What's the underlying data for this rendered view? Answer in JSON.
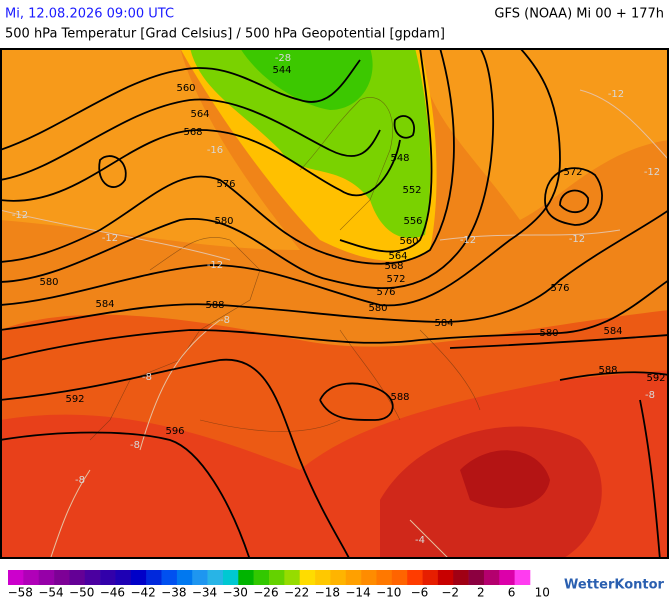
{
  "header": {
    "datetime": "Mi, 12.08.2026 09:00 UTC",
    "model": "GFS (NOAA) Mi 00 + 177h",
    "title": "500 hPa Temperatur [Grad Celsius] / 500 hPa Geopotential [gpdam]"
  },
  "map": {
    "contour_labels": [
      544,
      560,
      564,
      568,
      548,
      552,
      556,
      560,
      564,
      568,
      572,
      576,
      580,
      576,
      580,
      584,
      576,
      572,
      580,
      584,
      588,
      580,
      584,
      588,
      592,
      588,
      592,
      596
    ],
    "isotherm_labels": [
      -28,
      -16,
      -12,
      -12,
      -12,
      -12,
      -12,
      -12,
      -12,
      -8,
      -8,
      -8,
      -8,
      -8,
      -4
    ]
  },
  "legend": {
    "colors": [
      "#cc00cc",
      "#b000b8",
      "#9600a8",
      "#7d0096",
      "#640096",
      "#4b00a0",
      "#3200aa",
      "#1e00b4",
      "#0000c8",
      "#0028dc",
      "#0050f0",
      "#0078f0",
      "#1e96f0",
      "#28b4e6",
      "#00c8d2",
      "#00b400",
      "#32c800",
      "#64d200",
      "#96dc00",
      "#ffdc00",
      "#ffc800",
      "#ffb400",
      "#ffa000",
      "#ff8c00",
      "#ff7800",
      "#ff6400",
      "#ff3c00",
      "#e61e00",
      "#c80000",
      "#a00014",
      "#8c0040",
      "#b4006e",
      "#dc00aa",
      "#ff3cf0"
    ],
    "labels": [
      "−58",
      "−54",
      "−50",
      "−46",
      "−42",
      "−38",
      "−34",
      "−30",
      "−26",
      "−22",
      "−18",
      "−14",
      "−10",
      "−6",
      "−2",
      "2",
      "6",
      "10"
    ]
  },
  "brand": "WetterKontor"
}
